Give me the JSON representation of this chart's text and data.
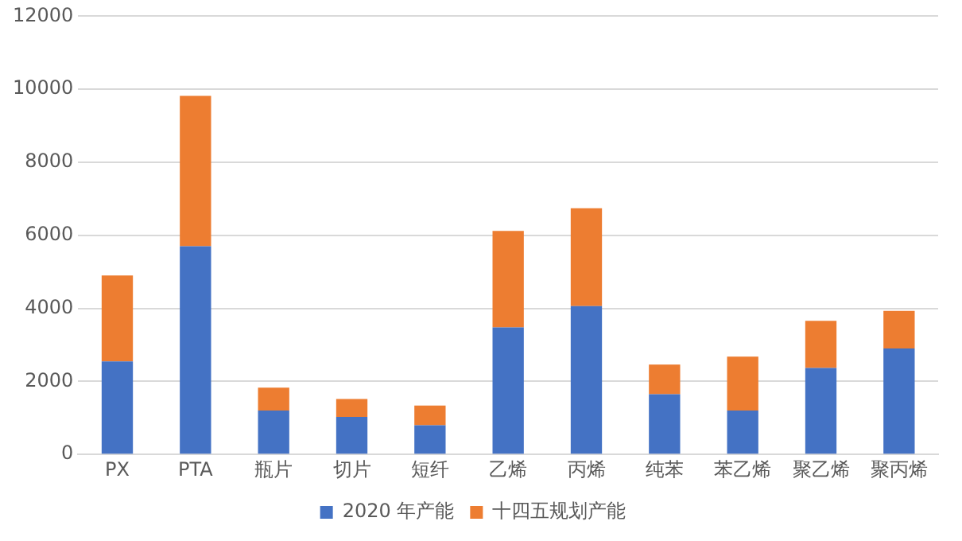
{
  "chart_data": {
    "type": "bar",
    "stacked": true,
    "categories": [
      "PX",
      "PTA",
      "瓶片",
      "切片",
      "短纤",
      "乙烯",
      "丙烯",
      "纯苯",
      "苯乙烯",
      "聚乙烯",
      "聚丙烯"
    ],
    "series": [
      {
        "name": "2020 年产能",
        "color": "#4472c4",
        "values": [
          2550,
          5700,
          1200,
          1030,
          800,
          3480,
          4060,
          1650,
          1200,
          2370,
          2900
        ]
      },
      {
        "name": "十四五规划产能",
        "color": "#ed7d31",
        "values": [
          2350,
          4120,
          630,
          490,
          540,
          2640,
          2680,
          810,
          1480,
          1290,
          1030
        ]
      }
    ],
    "ylim": [
      0,
      12000
    ],
    "yticks": [
      0,
      2000,
      4000,
      6000,
      8000,
      10000,
      12000
    ],
    "grid": "y",
    "legend": "bottom"
  }
}
